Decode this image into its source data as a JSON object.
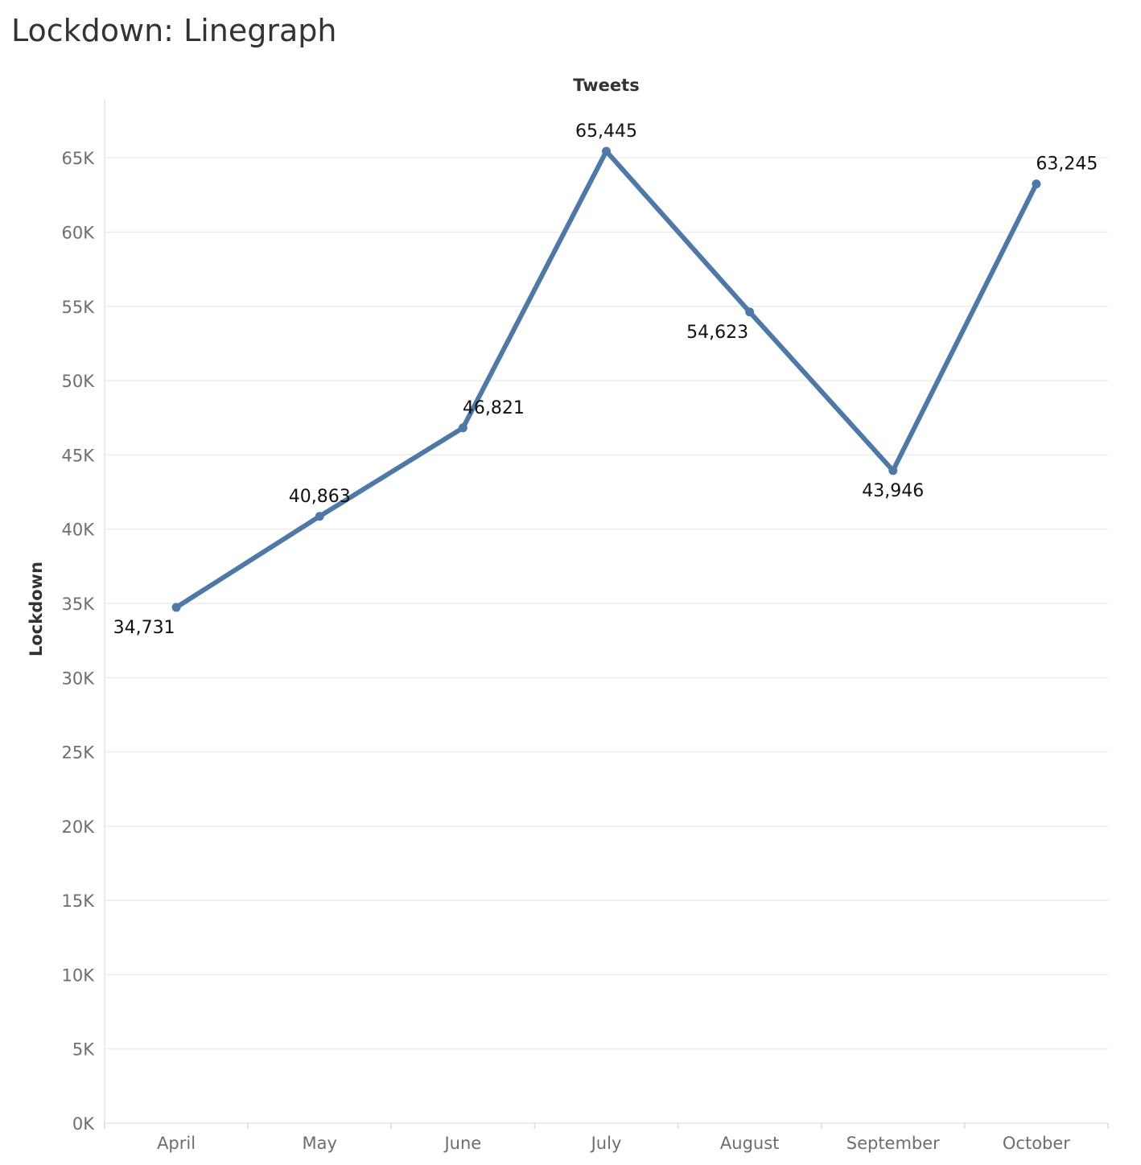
{
  "title": "Lockdown: Linegraph",
  "chart_data": {
    "type": "line",
    "title": "Lockdown: Linegraph",
    "xlabel": "Tweets",
    "ylabel": "Lockdown",
    "categories": [
      "April",
      "May",
      "June",
      "July",
      "August",
      "September",
      "October"
    ],
    "series": [
      {
        "values": [
          34731,
          40863,
          46821,
          65445,
          54623,
          43946,
          63245
        ],
        "labels": [
          "34,731",
          "40,863",
          "46,821",
          "65,445",
          "54,623",
          "43,946",
          "63,245"
        ],
        "color": "#4e79a7"
      }
    ],
    "yticks": [
      {
        "value": 0,
        "label": "0K"
      },
      {
        "value": 5000,
        "label": "5K"
      },
      {
        "value": 10000,
        "label": "10K"
      },
      {
        "value": 15000,
        "label": "15K"
      },
      {
        "value": 20000,
        "label": "20K"
      },
      {
        "value": 25000,
        "label": "25K"
      },
      {
        "value": 30000,
        "label": "30K"
      },
      {
        "value": 35000,
        "label": "35K"
      },
      {
        "value": 40000,
        "label": "40K"
      },
      {
        "value": 45000,
        "label": "45K"
      },
      {
        "value": 50000,
        "label": "50K"
      },
      {
        "value": 55000,
        "label": "55K"
      },
      {
        "value": 60000,
        "label": "60K"
      },
      {
        "value": 65000,
        "label": "65K"
      }
    ],
    "ylim": [
      0,
      69000
    ],
    "grid": true,
    "legend": "none"
  }
}
